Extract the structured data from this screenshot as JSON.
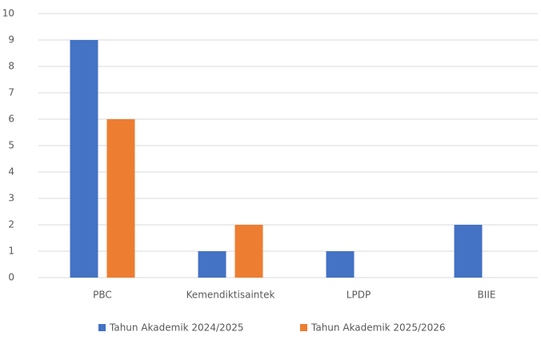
{
  "chart_data": {
    "type": "bar",
    "categories": [
      "PBC",
      "Kemendiktisaintek",
      "LPDP",
      "BIIE"
    ],
    "series": [
      {
        "name": "Tahun Akademik 2024/2025",
        "color": "#4472c4",
        "values": [
          9,
          1,
          1,
          2
        ]
      },
      {
        "name": "Tahun Akademik 2025/2026",
        "color": "#ed7d31",
        "values": [
          6,
          2,
          0,
          0
        ]
      }
    ],
    "ylim": [
      0,
      10
    ],
    "yticks": [
      0,
      1,
      2,
      3,
      4,
      5,
      6,
      7,
      8,
      9,
      10
    ],
    "grid": true,
    "legend": "bottom"
  }
}
